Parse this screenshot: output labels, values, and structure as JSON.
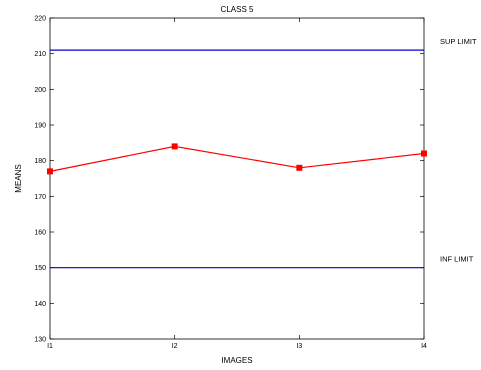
{
  "chart_data": {
    "type": "line",
    "title": "CLASS 5",
    "xlabel": "IMAGES",
    "ylabel": "MEANS",
    "categories": [
      "I1",
      "I2",
      "I3",
      "I4"
    ],
    "ylim": [
      130,
      220
    ],
    "yticks": [
      130,
      140,
      150,
      160,
      170,
      180,
      190,
      200,
      210,
      220
    ],
    "grid": false,
    "series": [
      {
        "values": [
          177,
          184,
          178,
          182
        ],
        "color": "#ff0000",
        "marker": "square"
      }
    ],
    "reference_lines": [
      {
        "label": "SUP LIMIT",
        "value": 211,
        "color": "#0000cc"
      },
      {
        "label": "INF LIMIT",
        "value": 150,
        "color": "#0000cc"
      }
    ]
  }
}
